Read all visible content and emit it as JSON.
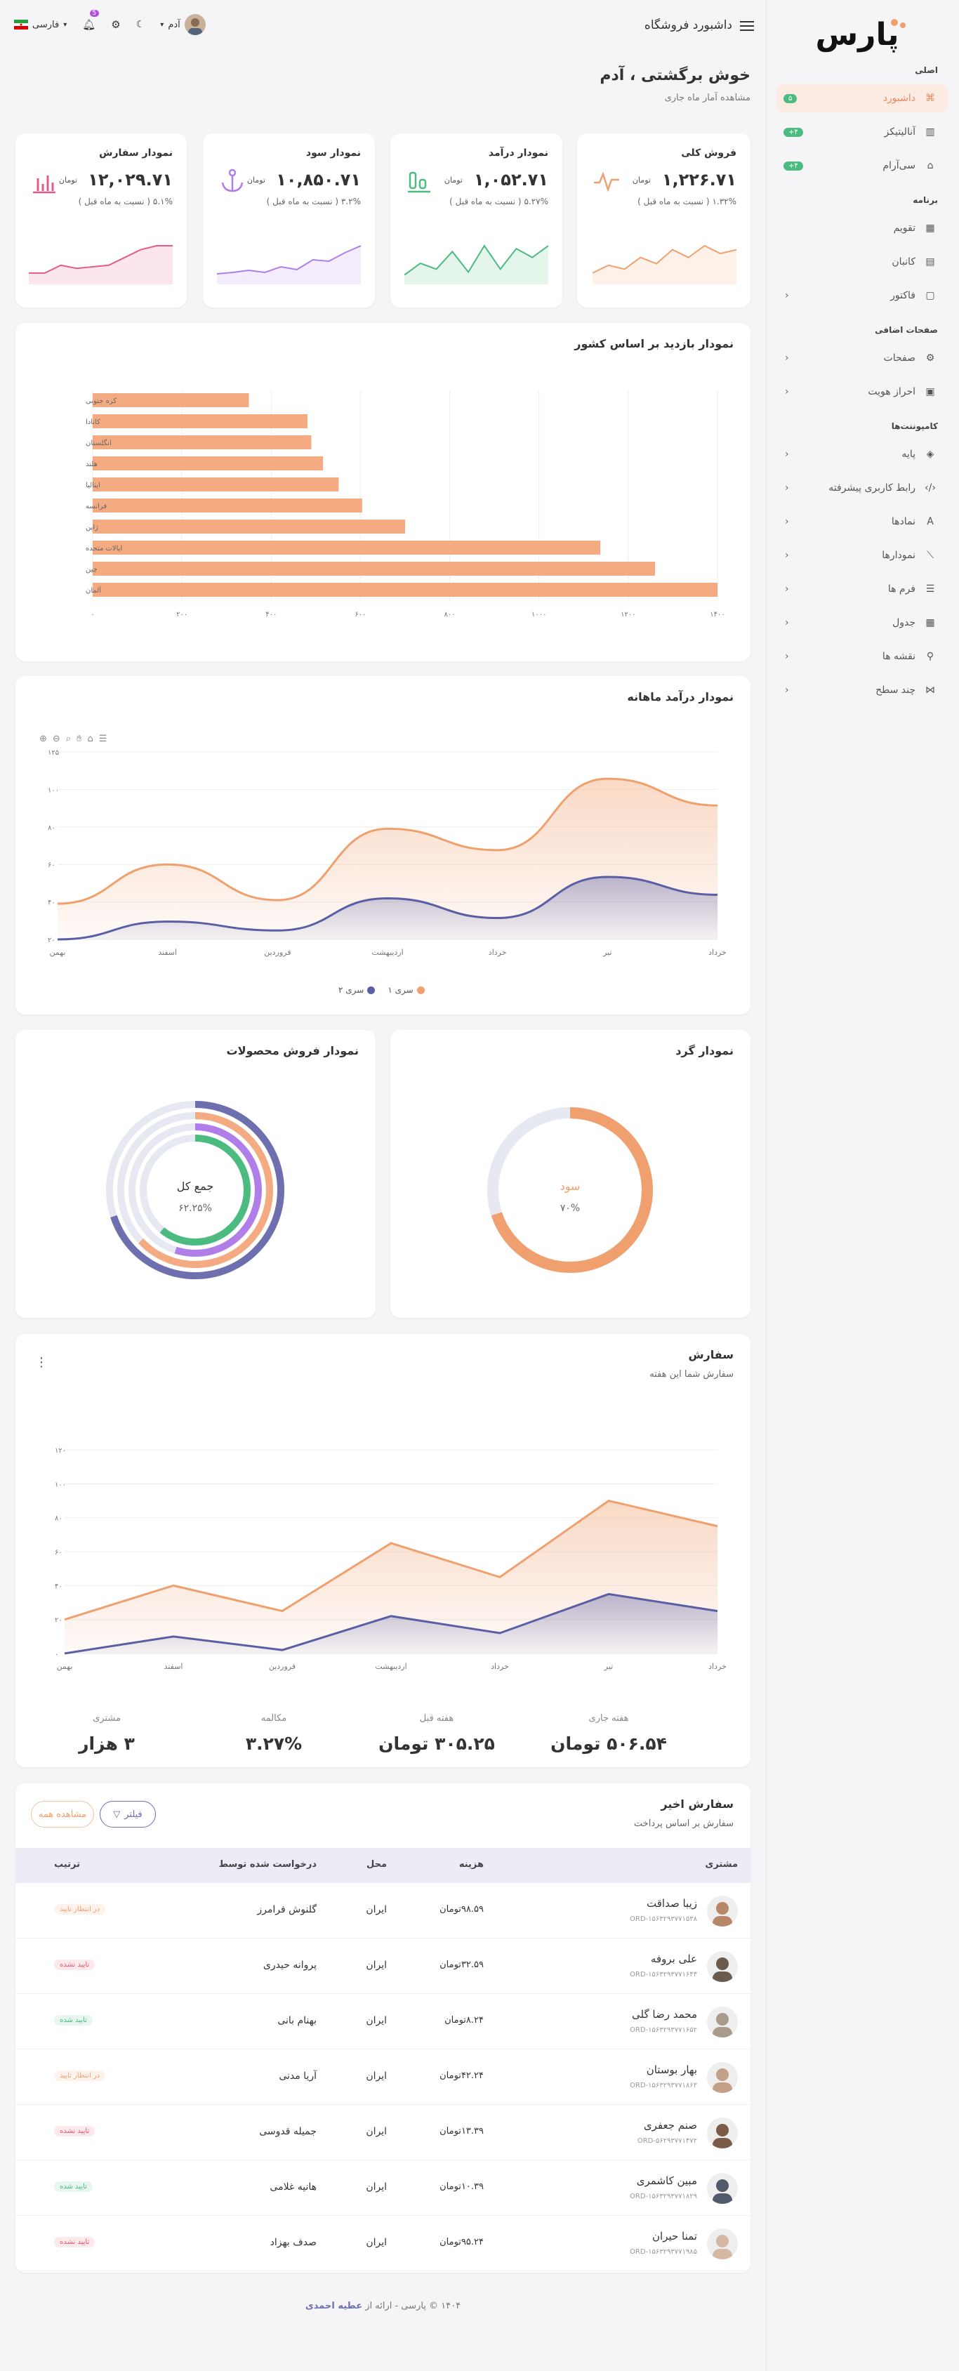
{
  "brand": {
    "logo_text": "پارس",
    "accent": "#f0a06e",
    "secondary": "#5a5ea5",
    "green": "#4cbb7f"
  },
  "sidebar": {
    "sections": [
      {
        "title": "اصلی",
        "items": [
          {
            "label": "داشبورد",
            "icon": "dashboard-icon",
            "badge": "۵",
            "active": true
          },
          {
            "label": "آنالیتیکز",
            "icon": "bar-chart-icon",
            "badge": "۴+"
          },
          {
            "label": "سی‌آرام",
            "icon": "store-icon",
            "badge": "۴+"
          }
        ]
      },
      {
        "title": "برنامه",
        "items": [
          {
            "label": "تقویم",
            "icon": "calendar-icon"
          },
          {
            "label": "کانبان",
            "icon": "kanban-icon"
          },
          {
            "label": "فاکتور",
            "icon": "invoice-icon",
            "chevron": true
          }
        ]
      },
      {
        "title": "صفحات اضافی",
        "items": [
          {
            "label": "صفحات",
            "icon": "gear-icon",
            "chevron": true
          },
          {
            "label": "احراز هویت",
            "icon": "id-card-icon",
            "chevron": true
          }
        ]
      },
      {
        "title": "کامپوننت‌ها",
        "items": [
          {
            "label": "پایه",
            "icon": "diamond-icon",
            "chevron": true
          },
          {
            "label": "رابط کاربری پیشرفته",
            "icon": "code-icon",
            "chevron": true
          },
          {
            "label": "نمادها",
            "icon": "font-icon",
            "chevron": true
          },
          {
            "label": "نمودارها",
            "icon": "line-chart-icon",
            "chevron": true
          },
          {
            "label": "فرم ها",
            "icon": "form-icon",
            "chevron": true
          },
          {
            "label": "جدول",
            "icon": "table-icon",
            "chevron": true
          },
          {
            "label": "نقشه ها",
            "icon": "map-pin-icon",
            "chevron": true
          },
          {
            "label": "چند سطح",
            "icon": "share-icon",
            "chevron": true
          }
        ]
      }
    ]
  },
  "header": {
    "title": "داشبورد فروشگاه",
    "language": "فارسی",
    "notification_count": "5",
    "user": "آدم"
  },
  "page": {
    "title": "خوش برگشتی ، آدم",
    "subtitle": "مشاهده آمار ماه جاری"
  },
  "stats": [
    {
      "title": "فروش کلی",
      "value": "۱,۲۲۶.۷۱",
      "unit": "تومان",
      "compare": "۱.۳۲% ( نسبت به ماه قبل )",
      "color": "#f0a06e",
      "icon": "pulse-icon",
      "spark": [
        3,
        4,
        3.5,
        5,
        4.2,
        6,
        5,
        6.5,
        5.5,
        6
      ]
    },
    {
      "title": "نمودار درآمد",
      "value": "۱,۰۵۲.۷۱",
      "unit": "تومان",
      "compare": "۵.۲۷% ( نسبت به ماه قبل )",
      "color": "#4cbb7f",
      "icon": "bar-chart-icon",
      "spark": [
        2,
        4,
        3,
        6,
        2.5,
        7,
        3,
        6.5,
        5,
        7
      ]
    },
    {
      "title": "نمودار سود",
      "value": "۱۰,۸۵۰.۷۱",
      "unit": "تومان",
      "compare": "۳.۲% ( نسبت به ماه قبل )",
      "color": "#b07ee8",
      "icon": "anchor-icon",
      "spark": [
        3,
        3.2,
        3.5,
        3.2,
        4,
        3.6,
        5,
        4.8,
        6,
        7
      ]
    },
    {
      "title": "نمودار سفارش",
      "value": "۱۲,۰۲۹.۷۱",
      "unit": "تومان",
      "compare": "۵.۱% ( نسبت به ماه قبل )",
      "color": "#e55a8a",
      "icon": "columns-icon",
      "spark": [
        3,
        3,
        4,
        3.6,
        3.8,
        4,
        5,
        6,
        6.5,
        6.5
      ]
    }
  ],
  "chart_data": [
    {
      "type": "bar",
      "title": "نمودار بازدید بر اساس کشور",
      "orientation": "horizontal",
      "categories": [
        "کره جنوبی",
        "کانادا",
        "انگلستان",
        "هلند",
        "ایتالیا",
        "فرانسه",
        "ژاپن",
        "ایالات متحده",
        "چین",
        "آلمان"
      ],
      "values": [
        400,
        550,
        560,
        590,
        630,
        690,
        800,
        1300,
        1440,
        1600
      ],
      "xlim": [
        0,
        1600
      ],
      "xticks": [
        "۰",
        "۲۰۰",
        "۴۰۰",
        "۶۰۰",
        "۸۰۰",
        "۱۰۰۰",
        "۱۲۰۰",
        "۱۴۰۰"
      ],
      "color": "#f4ab82"
    },
    {
      "type": "area",
      "title": "نمودار درآمد ماهانه",
      "categories": [
        "بهمن",
        "اسفند",
        "فروردین",
        "اردیبهشت",
        "خرداد",
        "تیر",
        "خرداد"
      ],
      "ylim": [
        20,
        125
      ],
      "yticks": [
        "۲۰",
        "۴۰",
        "۶۰",
        "۸۰",
        "۱۰۰",
        "۱۲۵"
      ],
      "series": [
        {
          "name": "سری ۱",
          "color": "#f0a06e",
          "values": [
            40,
            62,
            42,
            82,
            70,
            110,
            95
          ]
        },
        {
          "name": "سری ۲",
          "color": "#5a5ea5",
          "values": [
            20,
            30,
            25,
            43,
            32,
            55,
            45
          ]
        }
      ],
      "legend": "bottom"
    },
    {
      "type": "pie",
      "title": "نمودار گرد",
      "center_label": "سود",
      "center_value": "۷۰%",
      "values": [
        70
      ],
      "color": "#f0a06e"
    },
    {
      "type": "pie",
      "title": "نمودار فروش محصولات",
      "center_label": "جمع کل",
      "center_value": "۶۲.۲۵%",
      "series": [
        {
          "color": "#6e6fae",
          "value": 70
        },
        {
          "color": "#f4ab82",
          "value": 63
        },
        {
          "color": "#b07ee8",
          "value": 55
        },
        {
          "color": "#4cbb7f",
          "value": 61
        }
      ]
    },
    {
      "type": "area",
      "title": "سفارش",
      "subtitle": "سفارش شما این هفته",
      "categories": [
        "بهمن",
        "اسفند",
        "فروردین",
        "اردیبهشت",
        "خرداد",
        "تیر",
        "خرداد"
      ],
      "ylim": [
        0,
        120
      ],
      "yticks": [
        "۰",
        "۲۰",
        "۴۰",
        "۶۰",
        "۸۰",
        "۱۰۰",
        "۱۲۰"
      ],
      "series": [
        {
          "color": "#f0a06e",
          "values": [
            20,
            40,
            25,
            65,
            45,
            90,
            75
          ]
        },
        {
          "color": "#5a5ea5",
          "values": [
            0,
            10,
            2,
            22,
            12,
            35,
            25
          ]
        }
      ]
    }
  ],
  "orders_kpis": [
    {
      "label": "هفته جاری",
      "value": "۵۰۶.۵۴ تومان"
    },
    {
      "label": "هفته قبل",
      "value": "۳۰۵.۲۵ تومان"
    },
    {
      "label": "مکالمه",
      "value": "۳.۲۷%"
    },
    {
      "label": "مشتری",
      "value": "۳ هزار"
    }
  ],
  "recent": {
    "title": "سفارش اخیر",
    "subtitle": "سفارش بر اساس پرداخت",
    "filter_label": "فیلتر",
    "view_all_label": "مشاهده همه",
    "columns": [
      "مشتری",
      "هزینه",
      "محل",
      "درخواست شده توسط",
      "ترتیب"
    ],
    "rows": [
      {
        "name": "زیبا صداقت",
        "id": "ORD-۱۵۶۳۲۹۳۷۷۱۵۳۸",
        "cost": "۹۸.۵۹تومان",
        "location": "ایران",
        "requested_by": "گلنوش فرامرز",
        "status": "در انتظار تایید",
        "status_color": "#f0a06e",
        "avatar": "#b8876a"
      },
      {
        "name": "علی بروفه",
        "id": "ORD-۱۵۶۳۲۹۳۷۷۱۶۴۳",
        "cost": "۳۲.۵۹تومان",
        "location": "ایران",
        "requested_by": "پروانه حیدری",
        "status": "تایید نشده",
        "status_color": "#e55a6a",
        "avatar": "#6b5a4e"
      },
      {
        "name": "محمد رضا گلی",
        "id": "ORD-۱۵۶۳۲۹۳۷۷۱۶۵۲",
        "cost": "۸.۲۴تومان",
        "location": "ایران",
        "requested_by": "بهنام بانی",
        "status": "تایید شده",
        "status_color": "#4cbb7f",
        "avatar": "#a99a8c"
      },
      {
        "name": "بهار بوستان",
        "id": "ORD-۱۵۶۳۲۹۳۷۷۱۸۶۳",
        "cost": "۴۲.۲۴تومان",
        "location": "ایران",
        "requested_by": "آریا مدنی",
        "status": "در انتظار تایید",
        "status_color": "#f0a06e",
        "avatar": "#c4a088"
      },
      {
        "name": "صنم جعفری",
        "id": "ORD-۵۶۲۹۳۷۷۱۴۷۲",
        "cost": "۱۳.۳۹تومان",
        "location": "ایران",
        "requested_by": "جمیله قدوسی",
        "status": "تایید نشده",
        "status_color": "#e55a6a",
        "avatar": "#7a5c48"
      },
      {
        "name": "مبین کاشمری",
        "id": "ORD-۱۵۶۳۲۹۳۷۷۱۸۲۹",
        "cost": "۱۰.۳۹تومان",
        "location": "ایران",
        "requested_by": "هانیه غلامی",
        "status": "تایید شده",
        "status_color": "#4cbb7f",
        "avatar": "#505a6b"
      },
      {
        "name": "تمنا حیران",
        "id": "ORD-۱۵۶۳۲۹۳۷۷۱۹۸۵",
        "cost": "۹۵.۲۴تومان",
        "location": "ایران",
        "requested_by": "صدف بهزاد",
        "status": "تایید نشده",
        "status_color": "#e55a6a",
        "avatar": "#d4b8a4"
      }
    ]
  },
  "footer": {
    "text": "۱۴۰۴ © پارسی - ارائه از ",
    "author": "عطیه احمدی"
  }
}
